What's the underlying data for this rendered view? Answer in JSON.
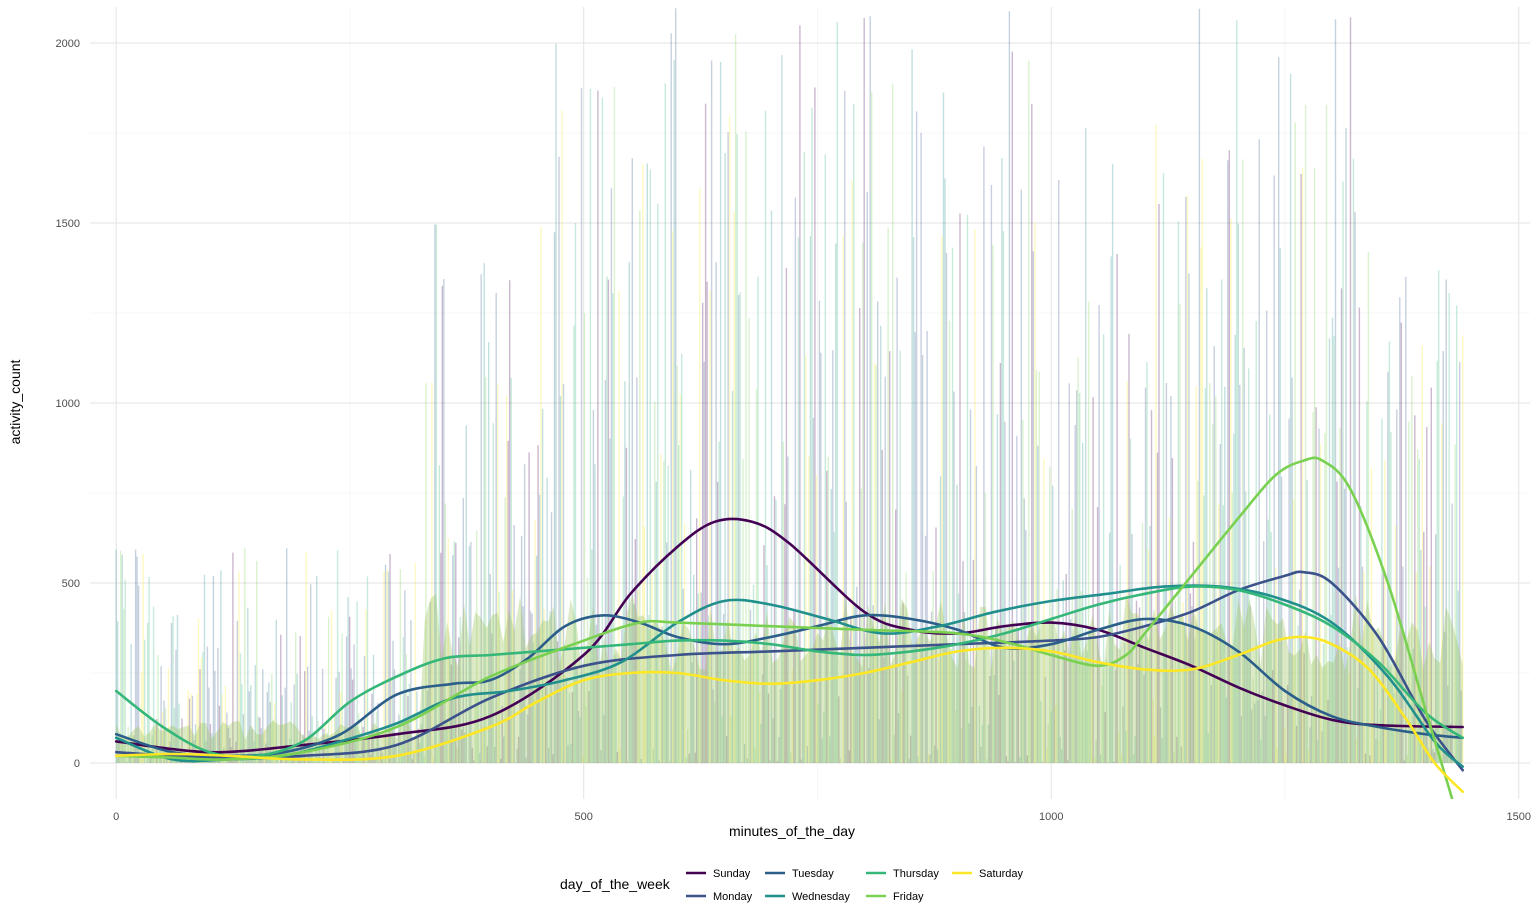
{
  "chart_data": {
    "type": "line",
    "xlabel": "minutes_of_the_day",
    "ylabel": "activity_count",
    "xlim": [
      -28,
      1512
    ],
    "ylim": [
      -100,
      2100
    ],
    "x_ticks": [
      0,
      500,
      1000,
      1500
    ],
    "y_ticks": [
      0,
      500,
      1000,
      1500,
      2000
    ],
    "x_tick_labels": [
      "0",
      "500",
      "1000",
      "1500"
    ],
    "y_tick_labels": [
      "0",
      "500",
      "1000",
      "1500",
      "2000"
    ],
    "grid": true,
    "legend": {
      "title": "day_of_the_week",
      "position": "bottom",
      "columns": [
        [
          "Sunday",
          "Monday"
        ],
        [
          "Tuesday",
          "Wednesday"
        ],
        [
          "Thursday",
          "Friday"
        ],
        [
          "Saturday"
        ]
      ]
    },
    "raw_layer": {
      "description": "minute-by-minute activity counts drawn as semi-transparent lines for each day",
      "peak_windows": [
        [
          330,
          470,
          1500
        ],
        [
          470,
          1000,
          2100
        ],
        [
          1000,
          1150,
          1900
        ],
        [
          1150,
          1340,
          2100
        ],
        [
          1340,
          1440,
          1400
        ]
      ],
      "low_windows": [
        [
          0,
          330,
          600
        ]
      ]
    },
    "series": [
      {
        "name": "Sunday",
        "color": "#440154",
        "x": [
          0,
          100,
          200,
          300,
          400,
          500,
          550,
          600,
          640,
          680,
          720,
          800,
          850,
          900,
          950,
          1000,
          1050,
          1100,
          1150,
          1200,
          1250,
          1300,
          1350,
          1440
        ],
        "y": [
          60,
          30,
          50,
          80,
          130,
          300,
          470,
          600,
          670,
          670,
          610,
          420,
          370,
          360,
          380,
          390,
          370,
          320,
          270,
          210,
          160,
          120,
          105,
          100
        ]
      },
      {
        "name": "Monday",
        "color": "#3b528b",
        "x": [
          0,
          60,
          120,
          200,
          300,
          400,
          500,
          600,
          700,
          800,
          900,
          1000,
          1050,
          1100,
          1150,
          1200,
          1250,
          1270,
          1300,
          1350,
          1400,
          1440
        ],
        "y": [
          30,
          20,
          15,
          20,
          50,
          180,
          270,
          300,
          310,
          320,
          330,
          340,
          350,
          380,
          420,
          480,
          520,
          530,
          500,
          350,
          120,
          -20
        ]
      },
      {
        "name": "Tuesday",
        "color": "#2c5e8a",
        "x": [
          0,
          60,
          120,
          180,
          240,
          300,
          360,
          400,
          440,
          480,
          520,
          560,
          600,
          650,
          700,
          750,
          800,
          850,
          900,
          950,
          1000,
          1050,
          1100,
          1150,
          1200,
          1250,
          1300,
          1350,
          1400,
          1440
        ],
        "y": [
          80,
          30,
          20,
          30,
          80,
          190,
          220,
          230,
          290,
          380,
          410,
          390,
          350,
          330,
          350,
          380,
          410,
          400,
          370,
          320,
          330,
          370,
          400,
          380,
          310,
          200,
          130,
          100,
          80,
          70
        ]
      },
      {
        "name": "Wednesday",
        "color": "#21908d",
        "x": [
          0,
          60,
          120,
          180,
          240,
          300,
          360,
          420,
          480,
          540,
          600,
          650,
          700,
          760,
          820,
          880,
          940,
          1000,
          1060,
          1120,
          1180,
          1240,
          1300,
          1360,
          1410,
          1440
        ],
        "y": [
          70,
          10,
          10,
          20,
          60,
          110,
          180,
          200,
          230,
          280,
          390,
          450,
          440,
          400,
          360,
          380,
          420,
          450,
          470,
          490,
          490,
          460,
          390,
          240,
          60,
          -10
        ]
      },
      {
        "name": "Thursday",
        "color": "#35b779",
        "x": [
          0,
          50,
          100,
          150,
          200,
          250,
          300,
          350,
          400,
          450,
          500,
          550,
          600,
          650,
          700,
          750,
          800,
          850,
          900,
          950,
          1000,
          1050,
          1100,
          1150,
          1200,
          1250,
          1300,
          1350,
          1400,
          1440
        ],
        "y": [
          200,
          100,
          30,
          20,
          60,
          170,
          240,
          290,
          300,
          310,
          320,
          330,
          340,
          340,
          330,
          310,
          300,
          310,
          330,
          360,
          400,
          440,
          470,
          490,
          480,
          440,
          380,
          280,
          140,
          70
        ]
      },
      {
        "name": "Friday",
        "color": "#7ad151",
        "x": [
          0,
          60,
          120,
          200,
          300,
          400,
          500,
          560,
          600,
          700,
          800,
          900,
          960,
          1000,
          1050,
          1080,
          1100,
          1150,
          1200,
          1240,
          1270,
          1290,
          1320,
          1360,
          1400,
          1430
        ],
        "y": [
          20,
          15,
          10,
          30,
          100,
          240,
          340,
          390,
          390,
          380,
          370,
          360,
          330,
          300,
          270,
          300,
          360,
          520,
          680,
          800,
          840,
          840,
          760,
          500,
          150,
          -110
        ]
      },
      {
        "name": "Saturday",
        "color": "#fde725",
        "x": [
          0,
          60,
          120,
          200,
          300,
          400,
          450,
          500,
          550,
          600,
          650,
          700,
          750,
          800,
          850,
          900,
          950,
          1000,
          1050,
          1100,
          1150,
          1200,
          1240,
          1270,
          1300,
          1340,
          1380,
          1410,
          1440
        ],
        "y": [
          20,
          25,
          20,
          10,
          20,
          100,
          170,
          230,
          250,
          250,
          230,
          220,
          230,
          250,
          280,
          310,
          320,
          310,
          280,
          260,
          260,
          300,
          340,
          350,
          330,
          260,
          120,
          0,
          -80
        ]
      }
    ]
  }
}
